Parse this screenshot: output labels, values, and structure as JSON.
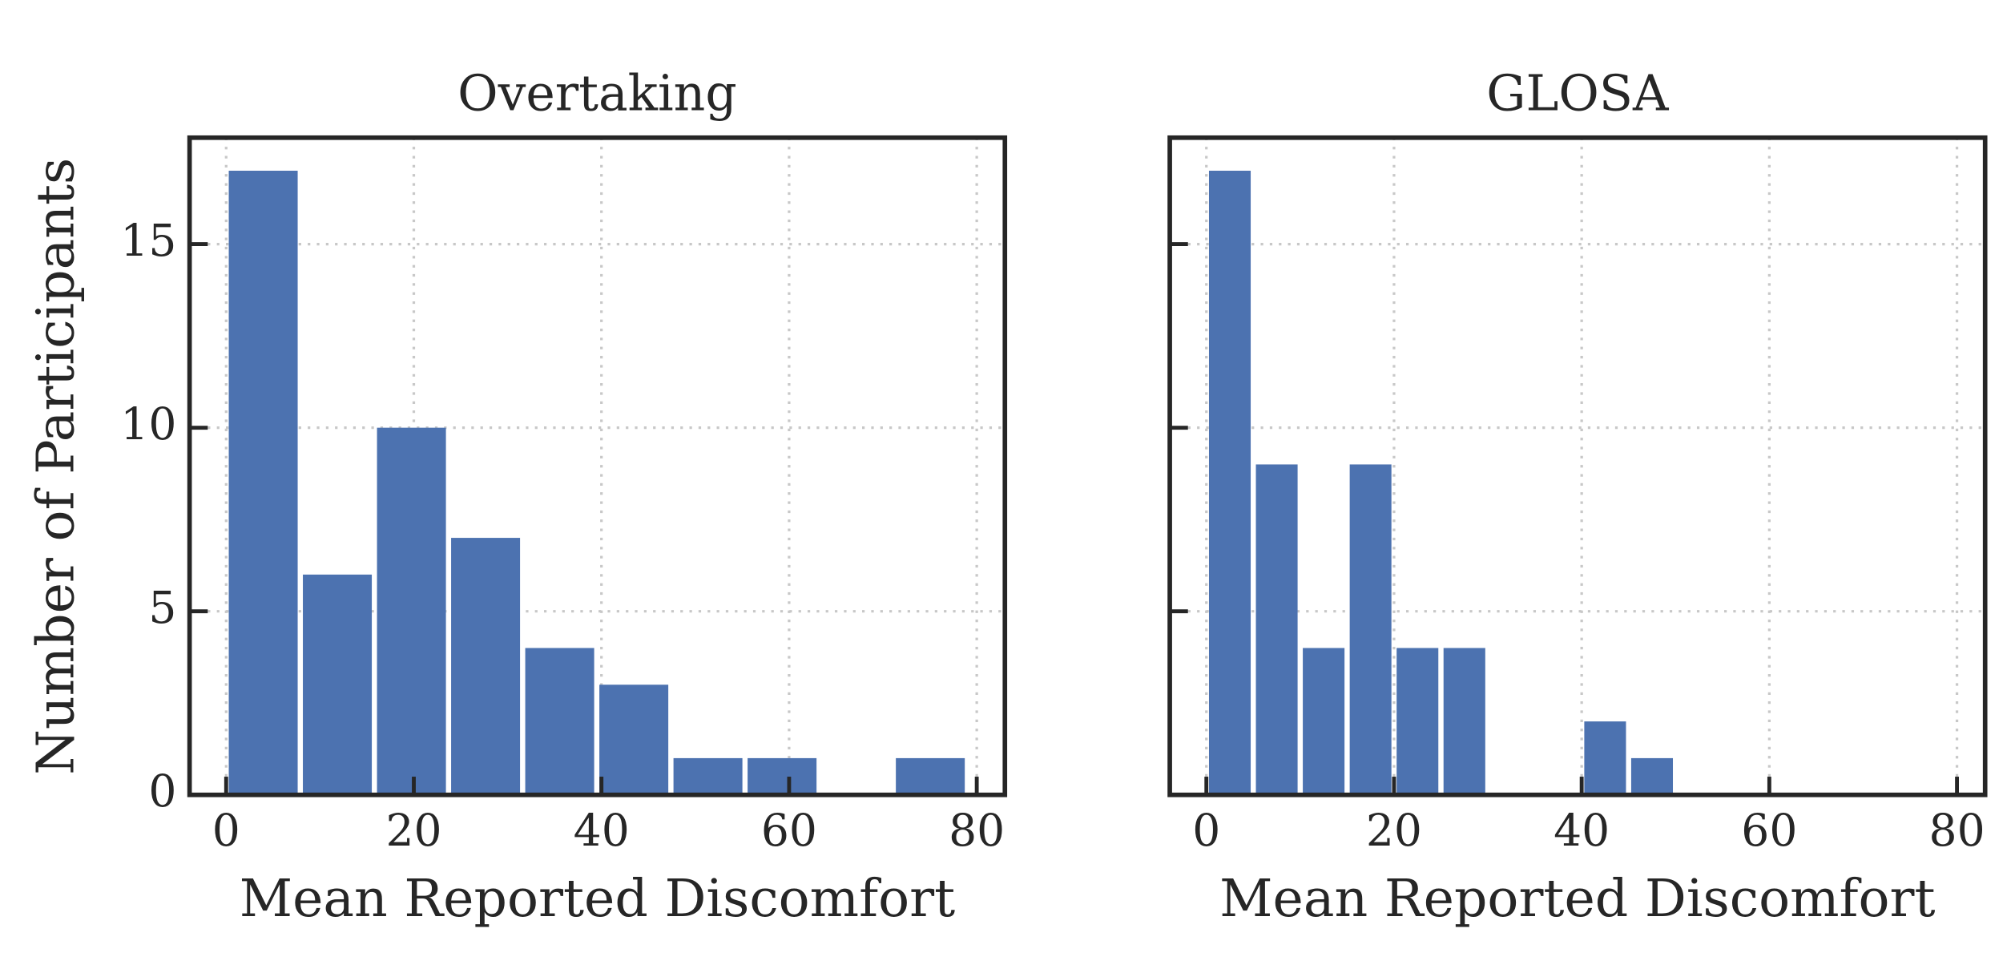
{
  "chart_data": [
    {
      "type": "histogram",
      "title": "Overtaking",
      "xlabel": "Mean Reported Discomfort",
      "ylabel": "Number of Participants",
      "bins": [
        0,
        7.9,
        15.8,
        23.7,
        31.6,
        39.5,
        47.4,
        55.3,
        63.2,
        71.1,
        79
      ],
      "values": [
        17,
        6,
        10,
        7,
        4,
        3,
        1,
        1,
        0,
        1
      ],
      "color": "#4c72b0",
      "xlim": [
        -3.9,
        83
      ],
      "ylim": [
        0,
        17.9
      ],
      "xticks": [
        0,
        20,
        40,
        60,
        80
      ],
      "yticks": [
        0,
        5,
        10,
        15
      ],
      "grid": true
    },
    {
      "type": "histogram",
      "title": "GLOSA",
      "xlabel": "Mean Reported Discomfort",
      "bins": [
        0,
        5,
        10,
        15,
        20,
        25,
        30,
        35,
        40,
        45,
        50
      ],
      "values": [
        17,
        9,
        4,
        9,
        4,
        4,
        0,
        0,
        2,
        1
      ],
      "color": "#4c72b0",
      "xlim": [
        -3.9,
        83
      ],
      "ylim": [
        0,
        17.9
      ],
      "xticks": [
        0,
        20,
        40,
        60,
        80
      ],
      "yticks": [
        0,
        5,
        10,
        15
      ],
      "grid": true
    }
  ]
}
